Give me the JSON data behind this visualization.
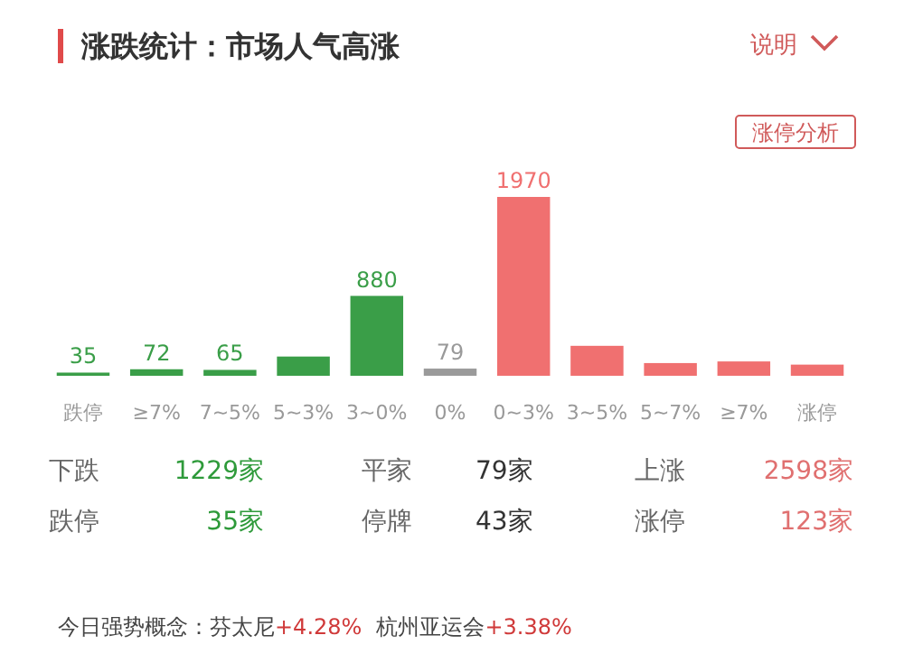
{
  "chart_data": {
    "type": "bar",
    "title": "涨跌统计：市场人气高涨",
    "categories": [
      "跌停",
      "≥7%",
      "7~5%",
      "5~3%",
      "3~0%",
      "0%",
      "0~3%",
      "3~5%",
      "5~7%",
      "≥7%",
      "涨停"
    ],
    "values": [
      35,
      72,
      65,
      212,
      880,
      79,
      1970,
      330,
      140,
      158,
      123
    ],
    "colors": [
      "#3a9e48",
      "#3a9e48",
      "#3a9e48",
      "#3a9e48",
      "#3a9e48",
      "#9a9a9a",
      "#f07070",
      "#f07070",
      "#f07070",
      "#f07070",
      "#f07070"
    ],
    "value_labels": [
      "35",
      "72",
      "65",
      null,
      "880",
      "79",
      "1970",
      null,
      null,
      null,
      null
    ],
    "annotations": [
      "说明",
      "涨停分析",
      "下跌",
      "1229家",
      "平家",
      "79家",
      "上涨",
      "2598家",
      "跌停",
      "35家",
      "停牌",
      "43家",
      "涨停",
      "123家",
      "今日强势概念：",
      "芬太尼",
      "+4.28%",
      "杭州亚运会",
      "+3.38%"
    ]
  }
}
